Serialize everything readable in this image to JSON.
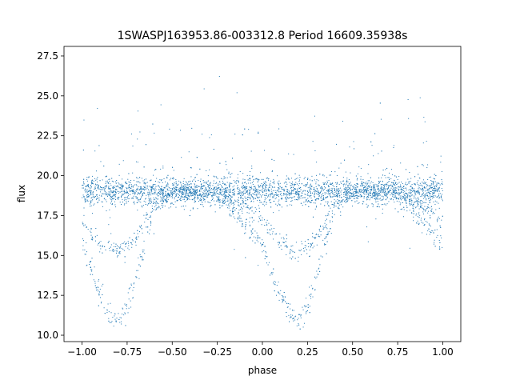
{
  "chart_data": {
    "type": "scatter",
    "title": "1SWASPJ163953.86-003312.8 Period 16609.35938s",
    "xlabel": "phase",
    "ylabel": "flux",
    "xlim": [
      -1.1,
      1.1
    ],
    "ylim": [
      9.6,
      28.1
    ],
    "xticks": [
      -1.0,
      -0.75,
      -0.5,
      -0.25,
      0.0,
      0.25,
      0.5,
      0.75,
      1.0
    ],
    "xtick_labels": [
      "−1.00",
      "−0.75",
      "−0.50",
      "−0.25",
      "0.00",
      "0.25",
      "0.50",
      "0.75",
      "1.00"
    ],
    "yticks": [
      10.0,
      12.5,
      15.0,
      17.5,
      20.0,
      22.5,
      25.0,
      27.5
    ],
    "ytick_labels": [
      "10.0",
      "12.5",
      "15.0",
      "17.5",
      "20.0",
      "22.5",
      "25.0",
      "27.5"
    ],
    "grid": false,
    "marker_color": "#1f77b4",
    "series": [
      {
        "description": "phase-folded light curve, baseline ~19 with two eclipses per cycle",
        "baseline": 19.0,
        "eclipse_centers": [
          -0.8,
          0.2
        ],
        "deep_minimum": 11.0,
        "shallow_minimum": 15.2,
        "x_sample": [
          -1.0,
          -0.95,
          -0.9,
          -0.85,
          -0.8,
          -0.75,
          -0.7,
          -0.65,
          -0.6,
          -0.5,
          -0.25,
          0.0,
          0.05,
          0.1,
          0.15,
          0.2,
          0.25,
          0.3,
          0.35,
          0.4,
          0.5,
          0.75,
          1.0
        ],
        "y_deep_sample": [
          15.6,
          14.0,
          12.5,
          11.4,
          11.0,
          11.8,
          13.5,
          15.8,
          18.0,
          19.0,
          19.0,
          15.6,
          14.0,
          12.5,
          11.4,
          11.0,
          11.8,
          13.5,
          15.8,
          18.0,
          19.0,
          19.0,
          15.6
        ],
        "y_shallow_sample": [
          17.3,
          16.4,
          15.8,
          15.4,
          15.2,
          15.5,
          16.2,
          17.2,
          18.3,
          19.0,
          19.0,
          17.3,
          16.4,
          15.8,
          15.4,
          15.2,
          15.5,
          16.2,
          17.2,
          18.3,
          19.0,
          19.0,
          17.3
        ]
      }
    ]
  }
}
